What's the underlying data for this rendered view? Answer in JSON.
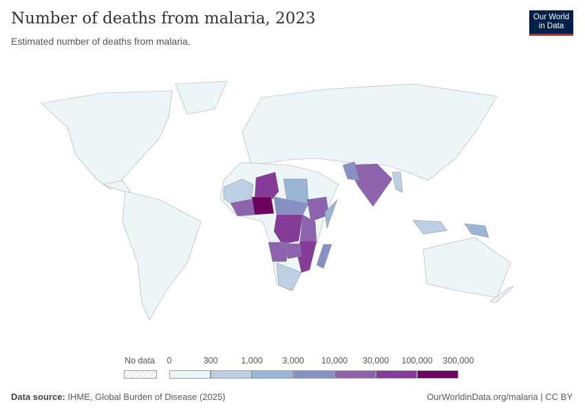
{
  "header": {
    "title": "Number of deaths from malaria, 2023",
    "subtitle": "Estimated number of deaths from malaria.",
    "logo_text": "Our World in Data",
    "logo_line1": "Our World",
    "logo_line2": "in Data"
  },
  "legend": {
    "no_data_label": "No data",
    "bins": [
      "0",
      "300",
      "1,000",
      "3,000",
      "10,000",
      "30,000",
      "100,000",
      "300,000"
    ],
    "colors": [
      "#ecf6f8",
      "#bccfe3",
      "#9bb5d6",
      "#8891c3",
      "#8e63ae",
      "#873b98",
      "#6e0061"
    ],
    "no_data_color": "#eeeeee"
  },
  "footer": {
    "source_label": "Data source:",
    "source": "IHME, Global Burden of Disease (2025)",
    "link": "OurWorldinData.org/malaria | CC BY"
  }
}
